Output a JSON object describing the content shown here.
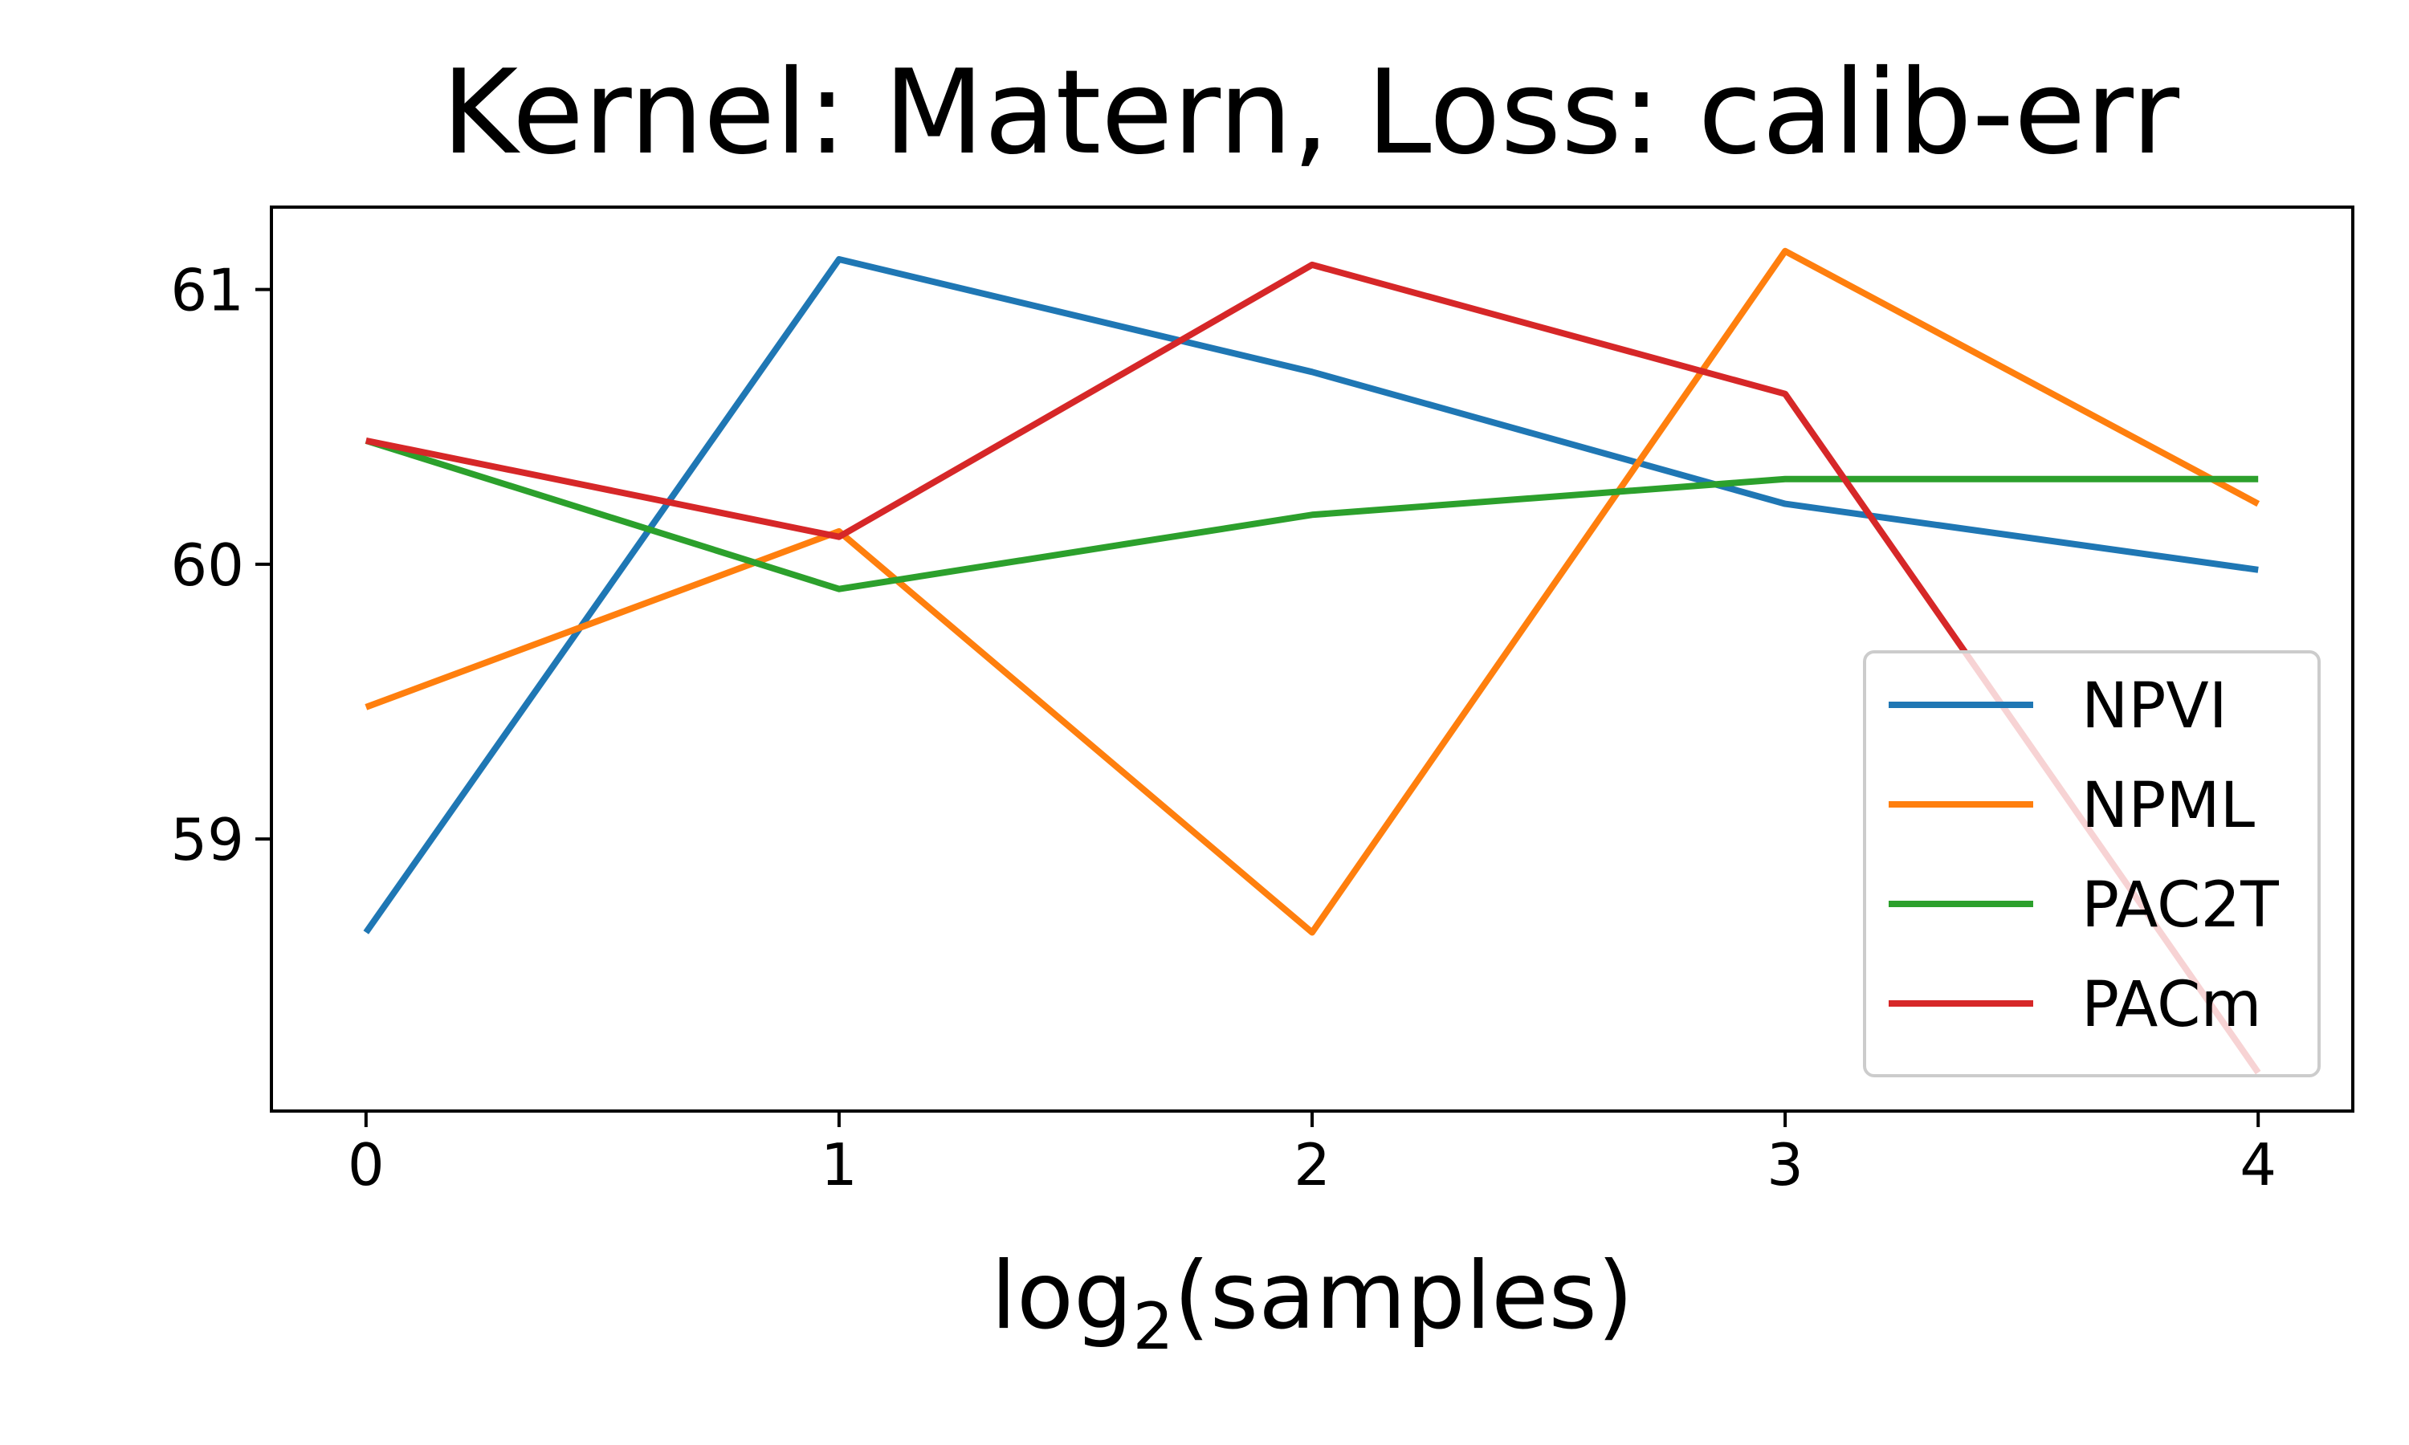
{
  "chart_data": {
    "type": "line",
    "title": "Kernel: Matern, Loss: calib-err",
    "xlabel_main": "log",
    "xlabel_sub": "2",
    "xlabel_rest": "(samples)",
    "ylabel": "",
    "x": [
      0,
      1,
      2,
      3,
      4
    ],
    "xticks": [
      "0",
      "1",
      "2",
      "3",
      "4"
    ],
    "yticks": [
      {
        "value": 59,
        "label": "59"
      },
      {
        "value": 60,
        "label": "60"
      },
      {
        "value": 61,
        "label": "61"
      }
    ],
    "xlim": [
      -0.2,
      4.2
    ],
    "ylim": [
      58.01,
      61.3
    ],
    "grid": false,
    "legend_position": "lower-right",
    "series": [
      {
        "name": "NPVI",
        "color": "#1f77b4",
        "values": [
          58.66,
          61.11,
          60.7,
          60.22,
          59.98
        ]
      },
      {
        "name": "NPML",
        "color": "#ff7f0e",
        "values": [
          59.48,
          60.12,
          58.66,
          61.14,
          60.22
        ]
      },
      {
        "name": "PAC2T",
        "color": "#2ca02c",
        "values": [
          60.45,
          59.91,
          60.18,
          60.31,
          60.31
        ]
      },
      {
        "name": "PACm",
        "color": "#d62728",
        "values": [
          60.45,
          60.1,
          61.09,
          60.62,
          58.15
        ]
      }
    ]
  }
}
